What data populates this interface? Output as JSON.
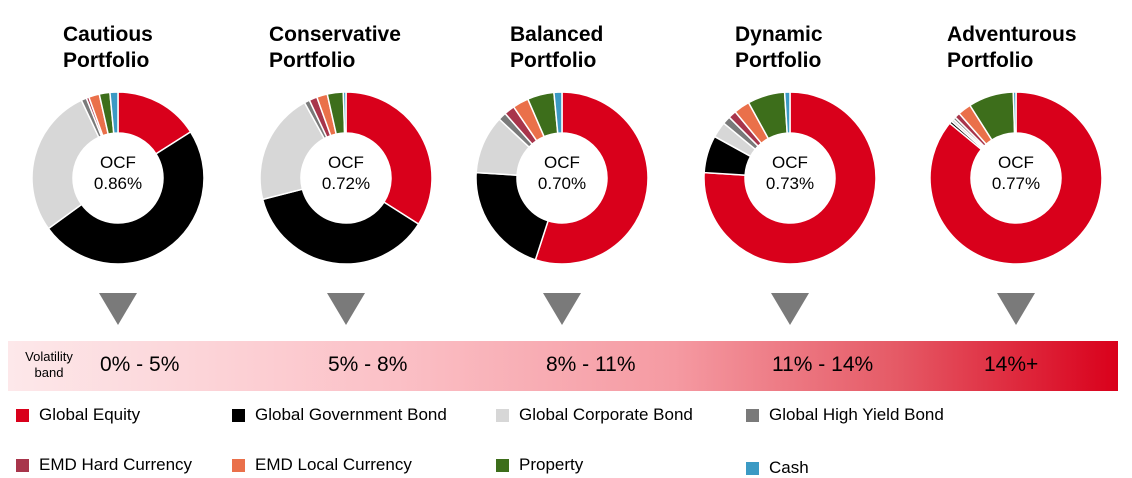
{
  "chart_data": {
    "type": "pie",
    "categories": [
      "Global Equity",
      "Global Government Bond",
      "Global Corporate Bond",
      "Global High Yield Bond",
      "EMD Hard Currency",
      "EMD Local Currency",
      "Property",
      "Cash"
    ],
    "colors": [
      "#d9001b",
      "#000000",
      "#d7d7d7",
      "#7a7a7a",
      "#a8354b",
      "#ea704a",
      "#3d6e1b",
      "#3b9ac4"
    ],
    "charts": [
      {
        "title": "Cautious Portfolio",
        "center_label": "OCF",
        "ocf": "0.86%",
        "values": [
          16,
          49,
          28,
          1,
          0.5,
          2,
          2,
          1.5
        ],
        "volatility_band": "0% - 5%"
      },
      {
        "title": "Conservative Portfolio",
        "center_label": "OCF",
        "ocf": "0.72%",
        "values": [
          34,
          37,
          21,
          1,
          1.5,
          2,
          3,
          0.5
        ],
        "volatility_band": "5% - 8%"
      },
      {
        "title": "Balanced Portfolio",
        "center_label": "OCF",
        "ocf": "0.70%",
        "values": [
          55,
          21,
          11,
          1.5,
          2,
          3,
          5,
          1.5
        ],
        "volatility_band": "8% - 11%"
      },
      {
        "title": "Dynamic Portfolio",
        "center_label": "OCF",
        "ocf": "0.73%",
        "values": [
          76,
          7,
          3,
          1.5,
          1.5,
          3,
          7,
          1
        ],
        "volatility_band": "11% - 14%"
      },
      {
        "title": "Adventurous Portfolio",
        "center_label": "OCF",
        "ocf": "0.77%",
        "values": [
          86,
          0.5,
          0.5,
          0.5,
          1,
          2.5,
          8.5,
          0.5
        ],
        "volatility_band": "14%+"
      }
    ]
  },
  "band_label": "Volatility band"
}
